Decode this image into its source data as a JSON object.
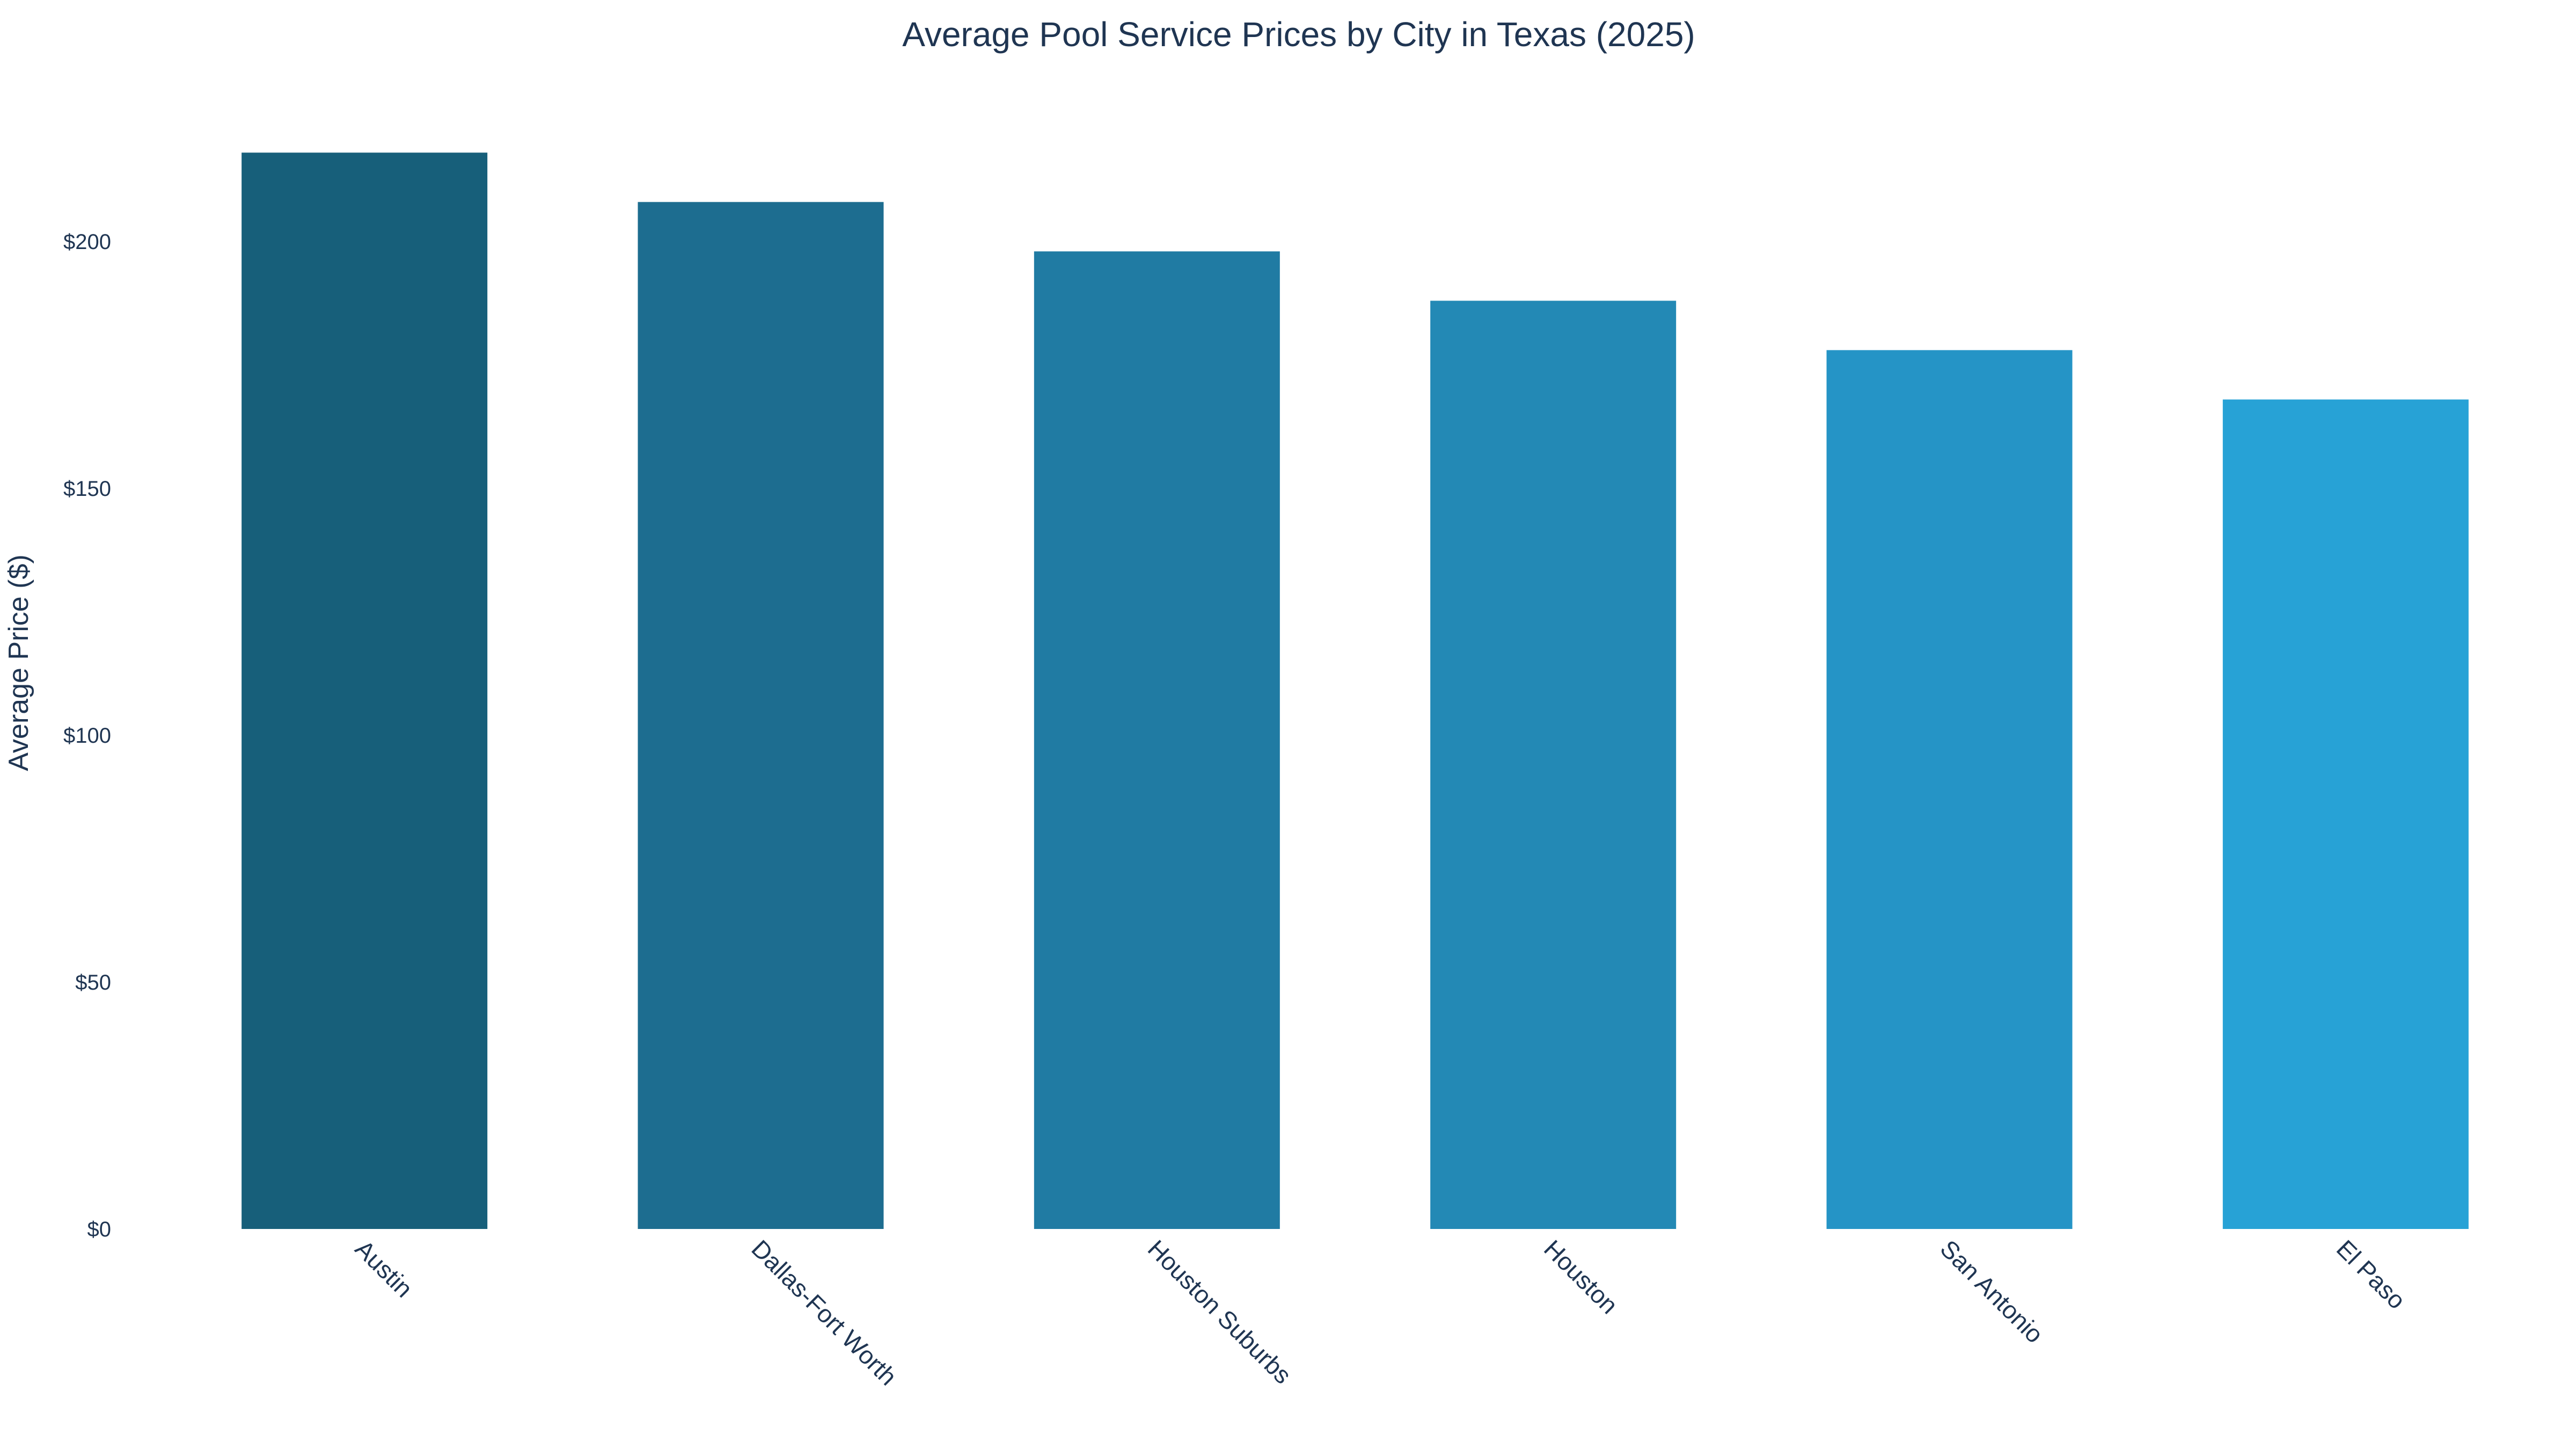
{
  "chart_data": {
    "type": "bar",
    "title": "Average Pool Service Prices by City in Texas (2025)",
    "xlabel": "",
    "ylabel": "Average Price ($)",
    "categories": [
      "Austin",
      "Dallas-Fort Worth",
      "Houston Suburbs",
      "Houston",
      "San Antonio",
      "El Paso"
    ],
    "values": [
      218,
      208,
      198,
      188,
      178,
      168
    ],
    "ylim": [
      0,
      218
    ],
    "yticks": [
      0,
      50,
      100,
      150,
      200
    ],
    "ytick_labels": [
      "$0",
      "$50",
      "$100",
      "$150",
      "$200"
    ],
    "grid": false,
    "legend": "none",
    "bar_colors": [
      "#175f7a",
      "#1d6d90",
      "#207ba3",
      "#2389b5",
      "#2594c6",
      "#27a2d6"
    ]
  }
}
